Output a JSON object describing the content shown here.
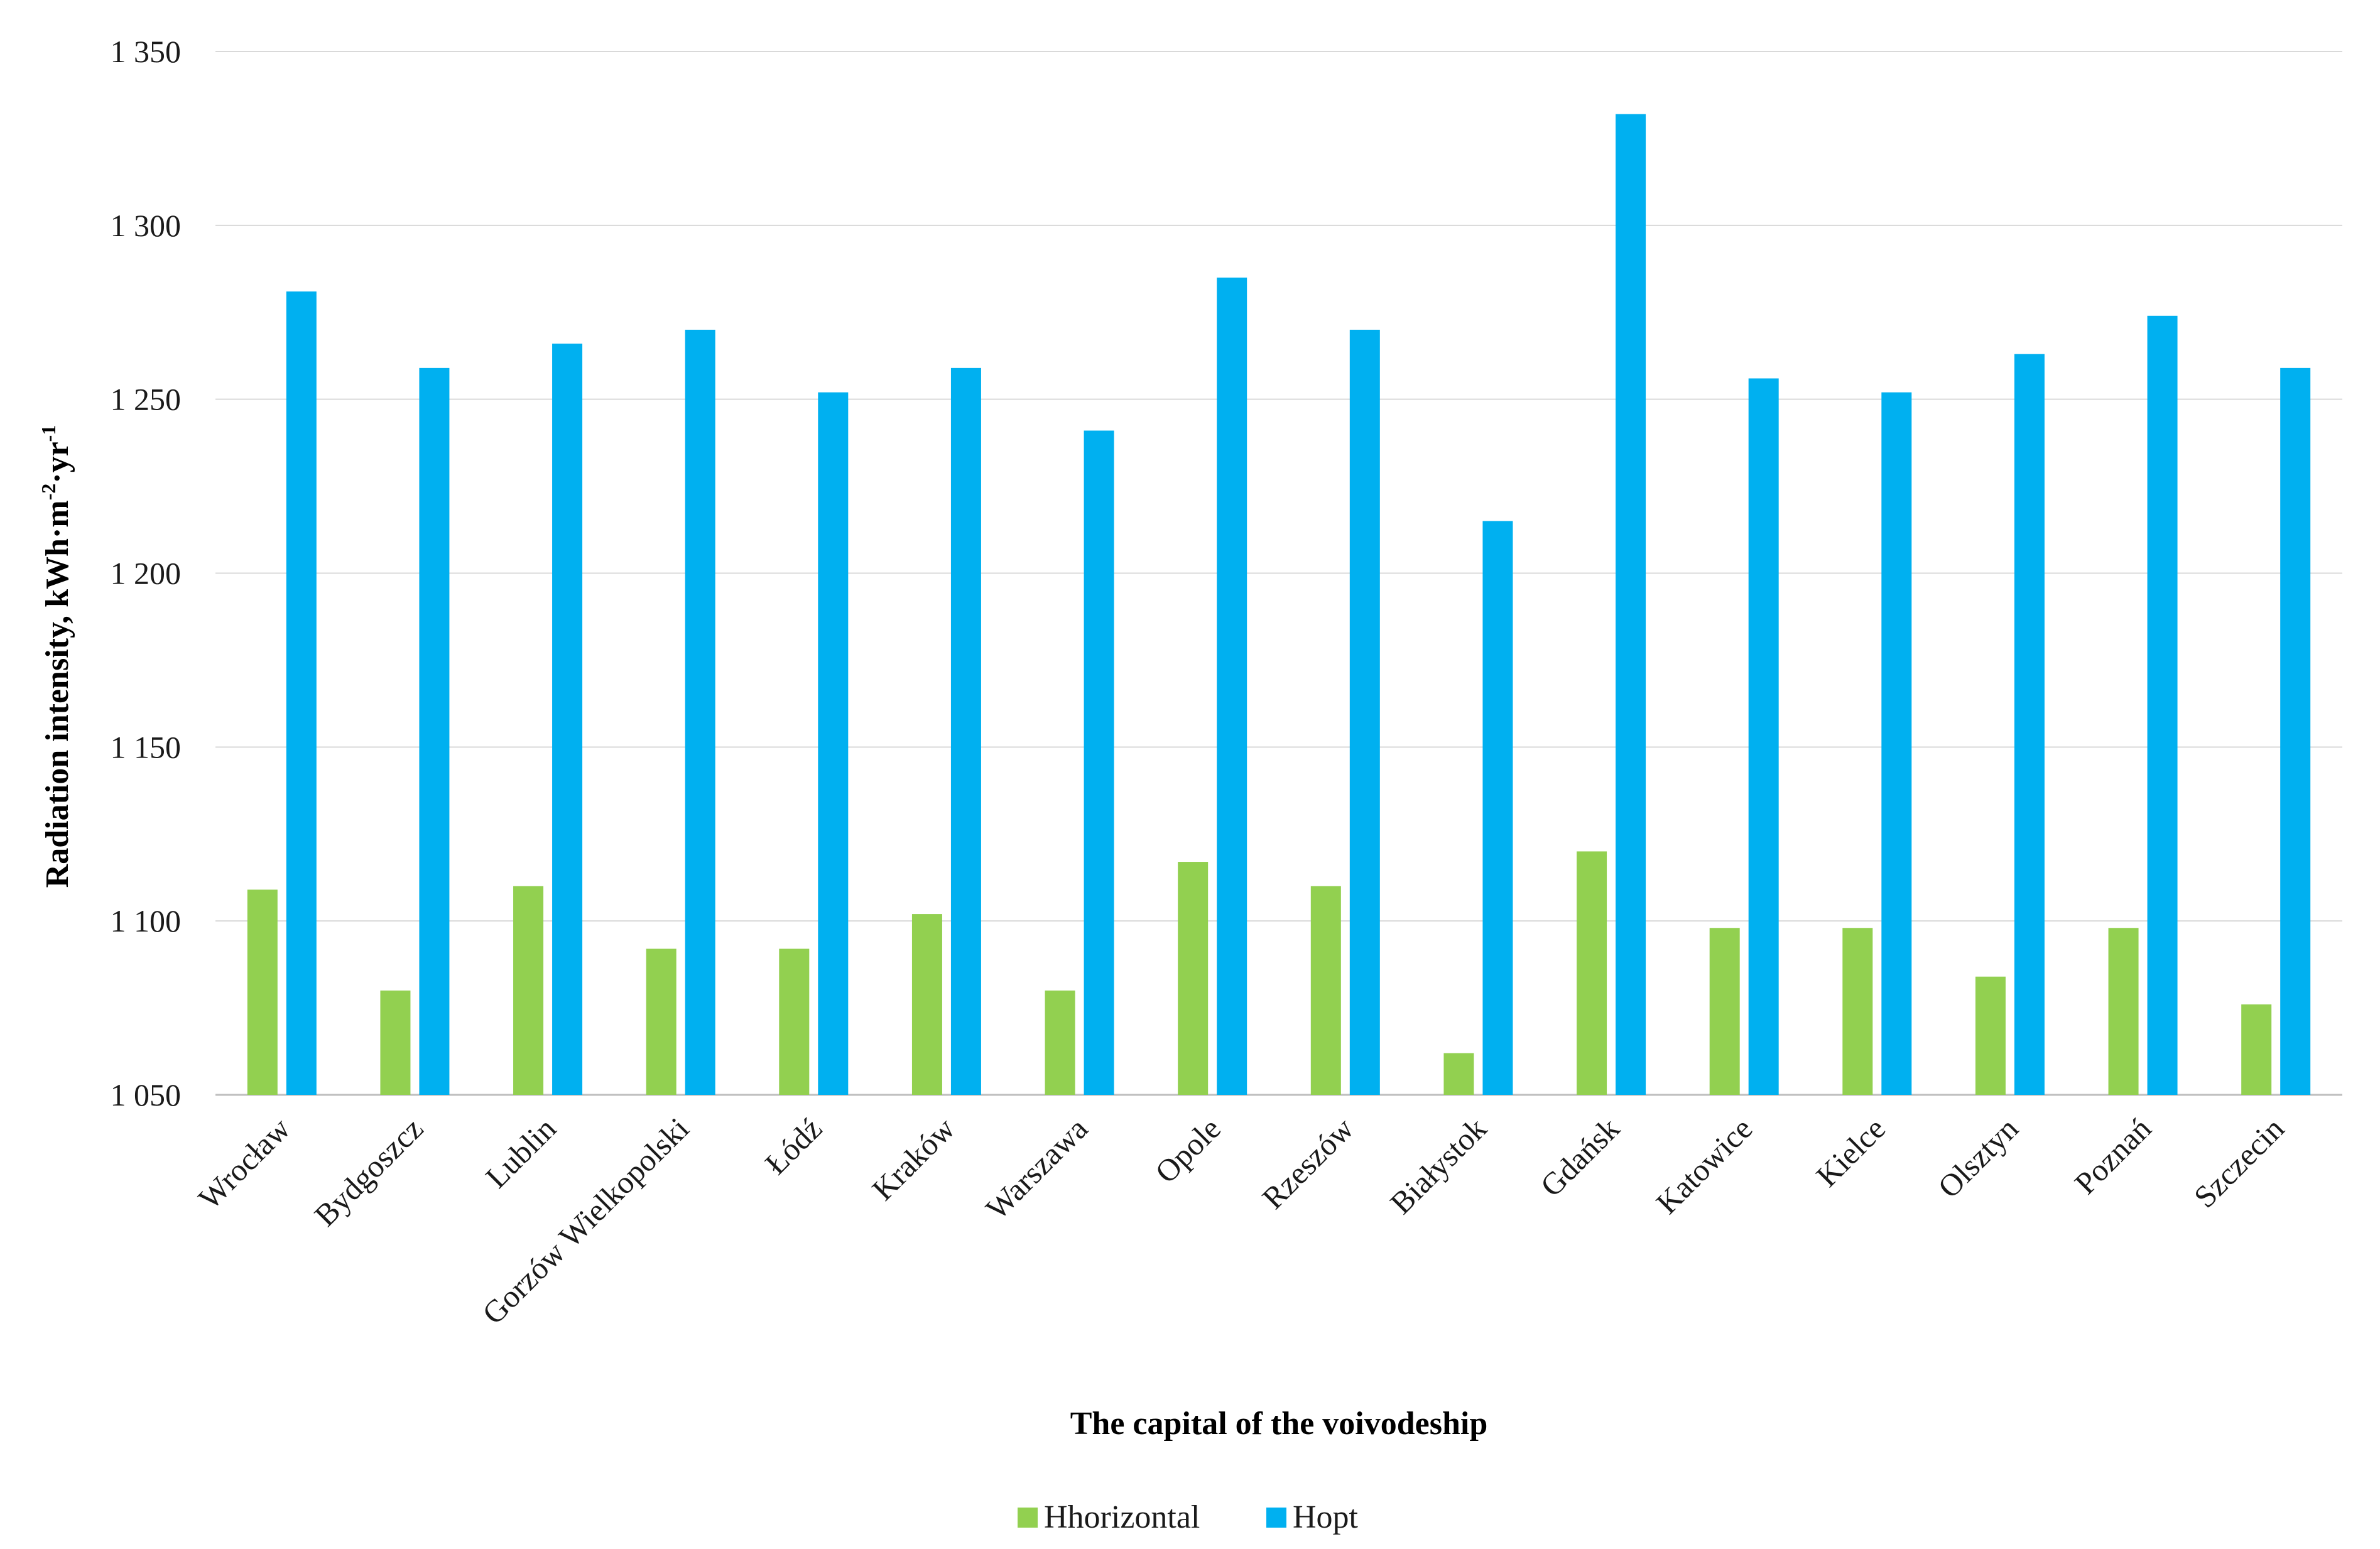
{
  "chart_data": {
    "type": "bar",
    "title": "",
    "xlabel": "The capital of the voivodeship",
    "ylabel_main": "Radiation intensity, kWh·m",
    "ylabel_sup1": "-2",
    "ylabel_mid": "·yr",
    "ylabel_sup2": "-1",
    "ylim": [
      1050,
      1350
    ],
    "yticks": [
      1050,
      1100,
      1150,
      1200,
      1250,
      1300,
      1350
    ],
    "ytick_labels": [
      "1 050",
      "1 100",
      "1 150",
      "1 200",
      "1 250",
      "1 300",
      "1 350"
    ],
    "grid": true,
    "legend_position": "bottom-center",
    "categories": [
      "Wrocław",
      "Bydgoszcz",
      "Lublin",
      "Gorzów Wielkopolski",
      "Łódź",
      "Kraków",
      "Warszawa",
      "Opole",
      "Rzeszów",
      "Białystok",
      "Gdańsk",
      "Katowice",
      "Kielce",
      "Olsztyn",
      "Poznań",
      "Szczecin"
    ],
    "series": [
      {
        "name": "Hhorizontal",
        "color": "#92d050",
        "values": [
          1109,
          1080,
          1110,
          1092,
          1092,
          1102,
          1080,
          1117,
          1110,
          1062,
          1120,
          1098,
          1098,
          1084,
          1098,
          1076
        ]
      },
      {
        "name": "Hopt",
        "color": "#00b0f0",
        "values": [
          1281,
          1259,
          1266,
          1270,
          1252,
          1259,
          1241,
          1285,
          1270,
          1215,
          1332,
          1256,
          1252,
          1263,
          1274,
          1259
        ]
      }
    ]
  }
}
